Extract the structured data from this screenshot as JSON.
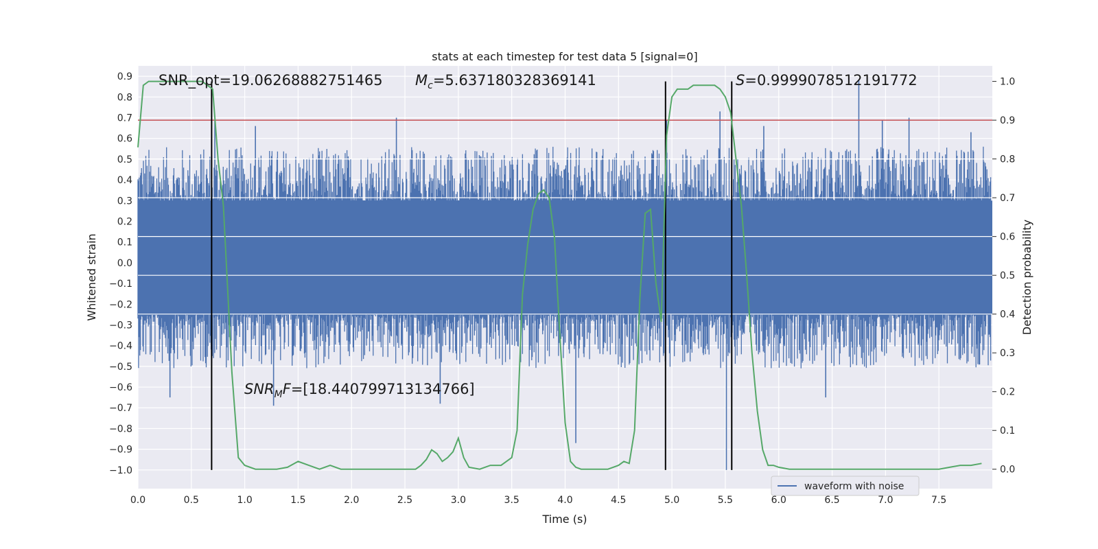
{
  "chart_data": {
    "type": "line",
    "title": "stats at each timestep for test data 5 [signal=0]",
    "xlabel": "Time (s)",
    "ylabel_left": "Whitened strain",
    "ylabel_right": "Detection probability",
    "xlim": [
      0.0,
      8.0
    ],
    "ylim_left": [
      -1.09,
      0.95
    ],
    "ylim_right": [
      -0.05,
      1.04
    ],
    "xticks": [
      0.0,
      0.5,
      1.0,
      1.5,
      2.0,
      2.5,
      3.0,
      3.5,
      4.0,
      4.5,
      5.0,
      5.5,
      6.0,
      6.5,
      7.0,
      7.5
    ],
    "xtick_labels": [
      "0.0",
      "0.5",
      "1.0",
      "1.5",
      "2.0",
      "2.5",
      "3.0",
      "3.5",
      "4.0",
      "4.5",
      "5.0",
      "5.5",
      "6.0",
      "6.5",
      "7.0",
      "7.5"
    ],
    "yticks_left": [
      0.9,
      0.8,
      0.7,
      0.6,
      0.5,
      0.4,
      0.3,
      0.2,
      0.1,
      0.0,
      -0.1,
      -0.2,
      -0.3,
      -0.4,
      -0.5,
      -0.6,
      -0.7,
      -0.8,
      -0.9,
      -1.0
    ],
    "ytick_labels_left": [
      "0.9",
      "0.8",
      "0.7",
      "0.6",
      "0.5",
      "0.4",
      "0.3",
      "0.2",
      "0.1",
      "0.0",
      "−0.1",
      "−0.2",
      "−0.3",
      "−0.4",
      "−0.5",
      "−0.6",
      "−0.7",
      "−0.8",
      "−0.9",
      "−1.0"
    ],
    "yticks_right": [
      1.0,
      0.9,
      0.8,
      0.7,
      0.6,
      0.5,
      0.4,
      0.3,
      0.2,
      0.1,
      0.0
    ],
    "ytick_labels_right": [
      "1.0",
      "0.9",
      "0.8",
      "0.7",
      "0.6",
      "0.5",
      "0.4",
      "0.3",
      "0.2",
      "0.1",
      "0.0"
    ],
    "grid": true,
    "legend_position": "bottom-right",
    "series": [
      {
        "name": "waveform with noise",
        "axis": "left",
        "color": "#4c72b0",
        "kind": "dense-noise",
        "core_band": [
          -0.25,
          0.3
        ],
        "typical_extent": [
          -0.45,
          0.5
        ],
        "spikes": [
          {
            "x": 2.42,
            "y": 0.7
          },
          {
            "x": 6.75,
            "y": 0.88
          },
          {
            "x": 5.45,
            "y": 0.73
          },
          {
            "x": 5.56,
            "y": -1.0
          },
          {
            "x": 5.51,
            "y": -1.0
          },
          {
            "x": 4.1,
            "y": -0.87
          },
          {
            "x": 1.27,
            "y": -0.69
          },
          {
            "x": 2.83,
            "y": -0.68
          },
          {
            "x": 0.3,
            "y": -0.65
          },
          {
            "x": 6.44,
            "y": -0.65
          },
          {
            "x": 0.72,
            "y": 0.69
          },
          {
            "x": 1.1,
            "y": 0.66
          },
          {
            "x": 4.95,
            "y": 0.69
          },
          {
            "x": 5.86,
            "y": 0.66
          },
          {
            "x": 6.97,
            "y": 0.69
          },
          {
            "x": 7.22,
            "y": 0.7
          },
          {
            "x": 7.8,
            "y": 0.63
          }
        ]
      },
      {
        "name": "detection probability",
        "axis": "right",
        "color": "#55a868",
        "x": [
          0.0,
          0.05,
          0.1,
          0.2,
          0.3,
          0.4,
          0.5,
          0.6,
          0.65,
          0.7,
          0.75,
          0.8,
          0.88,
          0.94,
          1.0,
          1.1,
          1.2,
          1.3,
          1.4,
          1.5,
          1.6,
          1.7,
          1.8,
          1.9,
          2.0,
          2.2,
          2.4,
          2.6,
          2.65,
          2.7,
          2.75,
          2.8,
          2.85,
          2.9,
          2.95,
          3.0,
          3.05,
          3.1,
          3.2,
          3.3,
          3.4,
          3.5,
          3.55,
          3.6,
          3.65,
          3.7,
          3.75,
          3.8,
          3.85,
          3.9,
          3.95,
          4.0,
          4.05,
          4.1,
          4.15,
          4.2,
          4.3,
          4.4,
          4.5,
          4.55,
          4.6,
          4.65,
          4.7,
          4.75,
          4.8,
          4.85,
          4.9,
          4.95,
          5.0,
          5.05,
          5.1,
          5.15,
          5.2,
          5.3,
          5.4,
          5.45,
          5.5,
          5.55,
          5.6,
          5.65,
          5.7,
          5.75,
          5.8,
          5.85,
          5.9,
          5.95,
          6.0,
          6.1,
          6.3,
          6.5,
          6.7,
          6.9,
          7.1,
          7.3,
          7.5,
          7.6,
          7.7,
          7.8,
          7.9
        ],
        "y": [
          0.83,
          0.99,
          1.0,
          1.0,
          1.0,
          1.0,
          1.0,
          1.0,
          0.99,
          0.98,
          0.8,
          0.68,
          0.25,
          0.03,
          0.01,
          0.0,
          0.0,
          0.0,
          0.005,
          0.02,
          0.01,
          0.0,
          0.01,
          0.0,
          0.0,
          0.0,
          0.0,
          0.0,
          0.01,
          0.025,
          0.05,
          0.04,
          0.02,
          0.03,
          0.045,
          0.08,
          0.03,
          0.005,
          0.0,
          0.01,
          0.01,
          0.03,
          0.1,
          0.45,
          0.58,
          0.67,
          0.71,
          0.72,
          0.7,
          0.6,
          0.35,
          0.12,
          0.02,
          0.005,
          0.0,
          0.0,
          0.0,
          0.0,
          0.01,
          0.02,
          0.015,
          0.1,
          0.44,
          0.66,
          0.67,
          0.48,
          0.38,
          0.86,
          0.96,
          0.98,
          0.98,
          0.98,
          0.99,
          0.99,
          0.99,
          0.98,
          0.96,
          0.92,
          0.8,
          0.68,
          0.5,
          0.3,
          0.15,
          0.05,
          0.01,
          0.01,
          0.005,
          0.0,
          0.0,
          0.0,
          0.0,
          0.0,
          0.0,
          0.0,
          0.0,
          0.005,
          0.01,
          0.01,
          0.015
        ]
      },
      {
        "name": "threshold",
        "axis": "right",
        "color": "#c44e52",
        "kind": "hline",
        "y": 0.9
      }
    ],
    "vlines": [
      {
        "x": 0.69,
        "y_top_right": 1.0
      },
      {
        "x": 4.94,
        "y_top_right": 1.0
      },
      {
        "x": 5.56,
        "y_top_right": 1.0
      }
    ],
    "annotations": {
      "snr_opt": "SNR_opt=19.06268882751465",
      "mc_symbol": "M",
      "mc_sub": "c",
      "mc_value": "=5.637180328369141",
      "s_symbol": "S",
      "s_value": "=0.9999078512191772",
      "snr_mf_symbol": "SNR",
      "snr_mf_sub": "M",
      "snr_mf_f": "F",
      "snr_mf_value": "=[18.440799713134766]"
    },
    "legend": [
      {
        "label": "waveform with noise",
        "color": "#4c72b0"
      }
    ]
  }
}
